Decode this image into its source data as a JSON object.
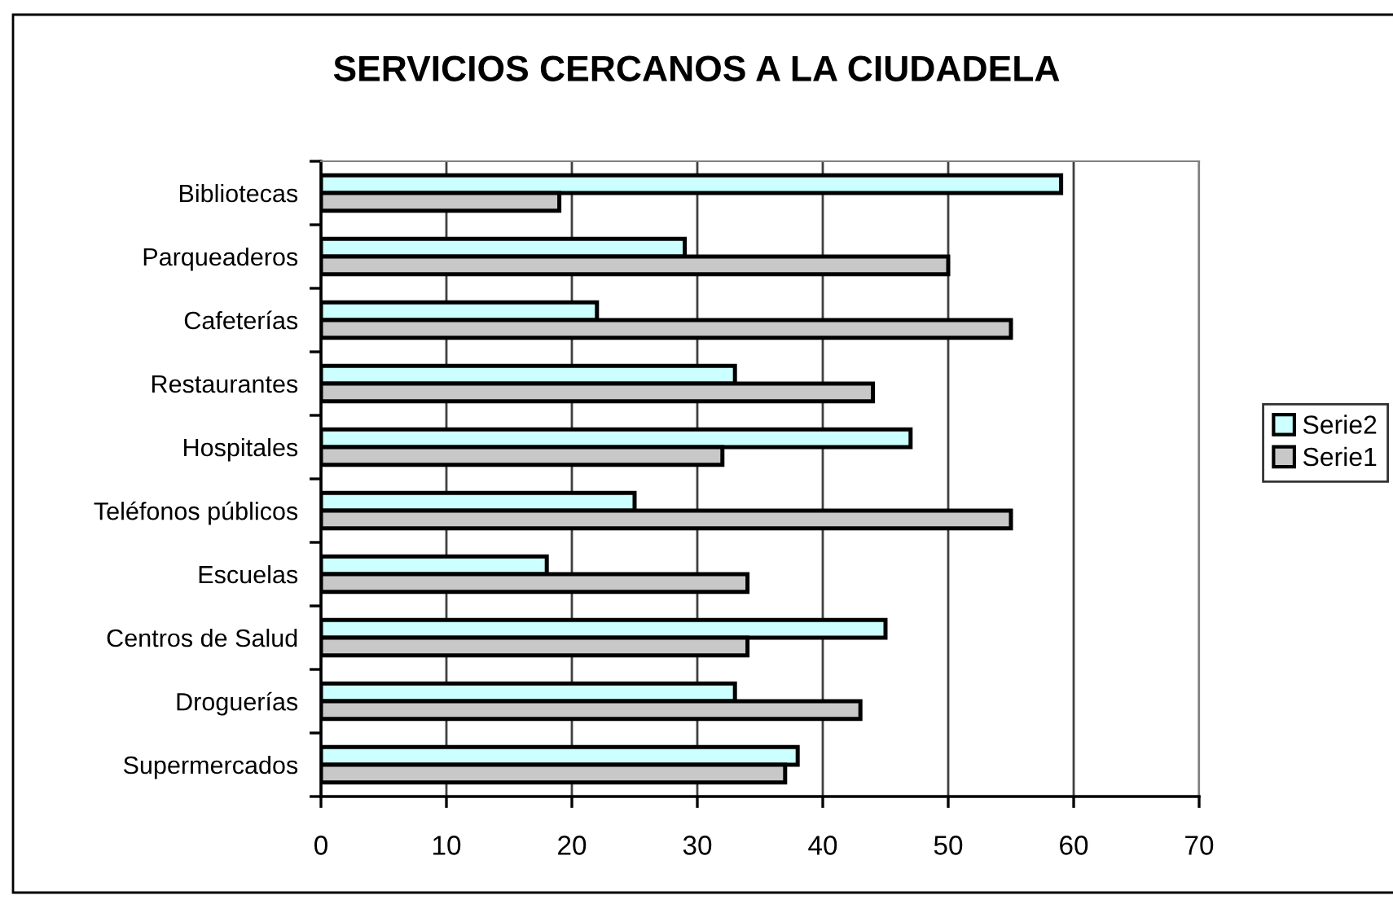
{
  "chart_data": {
    "type": "bar",
    "orientation": "horizontal",
    "title": "SERVICIOS CERCANOS A LA CIUDADELA",
    "categories": [
      "Bibliotecas",
      "Parqueaderos",
      "Cafeterías",
      "Restaurantes",
      "Hospitales",
      "Teléfonos públicos",
      "Escuelas",
      "Centros de Salud",
      "Droguerías",
      "Supermercados"
    ],
    "series": [
      {
        "name": "Serie2",
        "color": "#ccffff",
        "values": [
          59,
          29,
          22,
          33,
          47,
          25,
          18,
          45,
          33,
          38
        ]
      },
      {
        "name": "Serie1",
        "color": "#c8c8c8",
        "values": [
          19,
          50,
          55,
          44,
          32,
          55,
          34,
          34,
          43,
          37
        ]
      }
    ],
    "xlim": [
      0,
      70
    ],
    "xticks": [
      0,
      10,
      20,
      30,
      40,
      50,
      60,
      70
    ],
    "grid": "x",
    "legend": "right"
  }
}
